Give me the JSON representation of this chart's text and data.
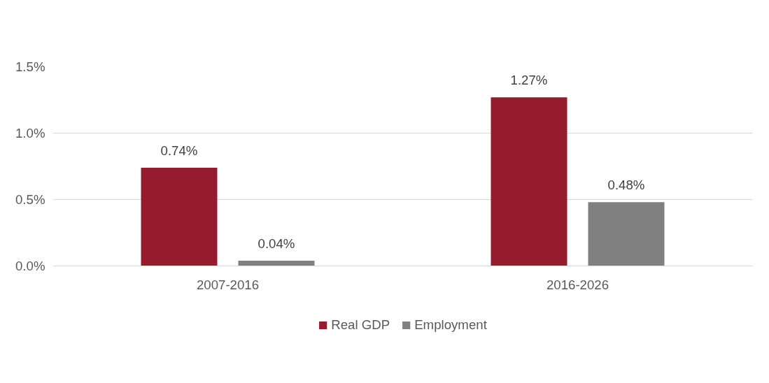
{
  "chart_data": {
    "type": "bar",
    "categories": [
      "2007-2016",
      "2016-2026"
    ],
    "series": [
      {
        "name": "Real GDP",
        "color": "#951b2e",
        "values": [
          0.74,
          1.27
        ],
        "value_labels": [
          "0.74%",
          "1.27%"
        ]
      },
      {
        "name": "Employment",
        "color": "#808080",
        "values": [
          0.04,
          0.48
        ],
        "value_labels": [
          "0.04%",
          "0.48%"
        ]
      }
    ],
    "ylim": [
      0,
      1.5
    ],
    "yticks": [
      {
        "value": 0,
        "label": "0.0%"
      },
      {
        "value": 0.5,
        "label": "0.5%"
      },
      {
        "value": 1.0,
        "label": "1.0%"
      },
      {
        "value": 1.5,
        "label": "1.5%"
      }
    ],
    "grid": "y",
    "legend": "bottom"
  }
}
